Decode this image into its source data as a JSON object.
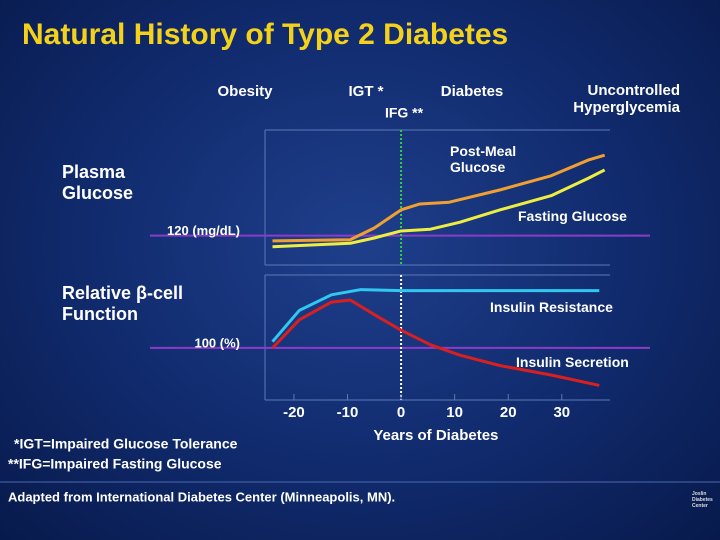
{
  "title": "Natural History of Type 2 Diabetes",
  "stages": [
    "Obesity",
    "IGT *",
    "Diabetes",
    "Uncontrolled Hyperglycemia",
    "IFG **"
  ],
  "footnotes": [
    "*IGT=Impaired Glucose Tolerance",
    "**IFG=Impaired Fasting Glucose"
  ],
  "source": "Adapted from International Diabetes Center (Minneapolis, MN).",
  "logo": "Joslin Diabetes Center",
  "chart_data": [
    {
      "type": "line",
      "ylabel": "Plasma Glucose",
      "reference": {
        "value": 120,
        "label": "120 (mg/dL)",
        "color": "#8a3cc8"
      },
      "xlim": [
        -25.4,
        39
      ],
      "ylim": [
        70,
        300
      ],
      "divider": {
        "value": 0,
        "color": "#30d040"
      },
      "series": [
        {
          "name": "Post-Meal Glucose",
          "color": "#f0a030",
          "x": [
            -24,
            -9.5,
            -5,
            0,
            3.5,
            9,
            18.5,
            28,
            35,
            38
          ],
          "values": [
            111,
            113,
            133,
            164,
            174,
            177,
            198,
            222,
            249,
            257
          ]
        },
        {
          "name": "Fasting Glucose",
          "color": "#eeee40",
          "x": [
            -24,
            -9.5,
            -5,
            0,
            5.5,
            11,
            18.5,
            28,
            35,
            38
          ],
          "values": [
            101,
            107,
            116,
            128,
            131,
            143,
            164,
            188,
            218,
            232
          ]
        }
      ]
    },
    {
      "type": "line",
      "ylabel": "Relative β-cell Function",
      "reference": {
        "value": 100,
        "label": "100 (%)",
        "color": "#8a3cc8"
      },
      "xlim": [
        -25.4,
        39
      ],
      "ylim": [
        50,
        170
      ],
      "xlabel": "Years of Diabetes",
      "xticks": [
        -20,
        -10,
        0,
        10,
        20,
        30
      ],
      "divider": {
        "value": 0,
        "color": "#ffffff"
      },
      "series": [
        {
          "name": "Insulin Resistance",
          "color": "#30c8f0",
          "x": [
            -24,
            -19,
            -13,
            -7.5,
            0,
            9,
            18.5,
            28,
            37
          ],
          "values": [
            106,
            136,
            151,
            156,
            155,
            155,
            155,
            155,
            155
          ]
        },
        {
          "name": "Insulin Secretion",
          "color": "#d82020",
          "x": [
            -24,
            -19,
            -13,
            -9.5,
            -5,
            0,
            5.5,
            11,
            18.5,
            28,
            37
          ],
          "values": [
            100,
            127,
            144,
            146,
            132,
            117,
            103,
            93,
            83,
            74,
            64
          ]
        }
      ]
    }
  ]
}
